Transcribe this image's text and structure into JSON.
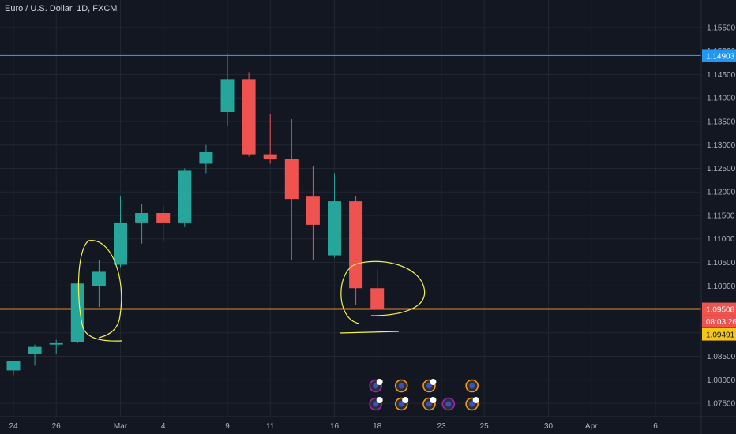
{
  "header": {
    "title": "Euro / U.S. Dollar, 1D, FXCM"
  },
  "colors": {
    "background": "#131722",
    "up": "#26a69a",
    "down": "#ef5350",
    "resistance_line": "#2196f3",
    "support_line": "#e08a2c",
    "annotation": "#f2f24a",
    "axis_text": "#b2b5be",
    "price_tag_bg": "#ef5350",
    "timer_tag_bg": "#ef5350",
    "low_tag_bg": "#f5c518"
  },
  "chart_data": {
    "type": "candlestick",
    "title": "Euro / U.S. Dollar, 1D, FXCM",
    "ylim": [
      1.0735,
      1.1575
    ],
    "y_ticks": [
      "1.15500",
      "1.15000",
      "1.14500",
      "1.14000",
      "1.13500",
      "1.13000",
      "1.12500",
      "1.12000",
      "1.11500",
      "1.11000",
      "1.10500",
      "1.10000",
      "1.09500",
      "1.09000",
      "1.08500",
      "1.08000",
      "1.07500"
    ],
    "x_ticks": [
      {
        "label": "24",
        "index": 0
      },
      {
        "label": "26",
        "index": 2
      },
      {
        "label": "Mar",
        "index": 5
      },
      {
        "label": "4",
        "index": 7
      },
      {
        "label": "9",
        "index": 10
      },
      {
        "label": "11",
        "index": 12
      },
      {
        "label": "16",
        "index": 15
      },
      {
        "label": "18",
        "index": 17
      },
      {
        "label": "23",
        "index": 20
      },
      {
        "label": "25",
        "index": 22
      },
      {
        "label": "30",
        "index": 25
      },
      {
        "label": "Apr",
        "index": 27
      },
      {
        "label": "6",
        "index": 30
      }
    ],
    "candles": [
      {
        "o": 1.082,
        "h": 1.084,
        "l": 1.081,
        "c": 1.084
      },
      {
        "o": 1.0855,
        "h": 1.0875,
        "l": 1.083,
        "c": 1.087
      },
      {
        "o": 1.0875,
        "h": 1.0885,
        "l": 1.0855,
        "c": 1.0878
      },
      {
        "o": 1.088,
        "h": 1.1005,
        "l": 1.0878,
        "c": 1.1005
      },
      {
        "o": 1.1,
        "h": 1.1055,
        "l": 1.0955,
        "c": 1.103
      },
      {
        "o": 1.1045,
        "h": 1.119,
        "l": 1.104,
        "c": 1.1135
      },
      {
        "o": 1.1135,
        "h": 1.1175,
        "l": 1.109,
        "c": 1.1155
      },
      {
        "o": 1.1155,
        "h": 1.117,
        "l": 1.1095,
        "c": 1.1135
      },
      {
        "o": 1.1135,
        "h": 1.125,
        "l": 1.1125,
        "c": 1.1245
      },
      {
        "o": 1.126,
        "h": 1.13,
        "l": 1.124,
        "c": 1.1285
      },
      {
        "o": 1.137,
        "h": 1.1495,
        "l": 1.134,
        "c": 1.144
      },
      {
        "o": 1.144,
        "h": 1.1455,
        "l": 1.1275,
        "c": 1.128
      },
      {
        "o": 1.128,
        "h": 1.1365,
        "l": 1.126,
        "c": 1.127
      },
      {
        "o": 1.127,
        "h": 1.1355,
        "l": 1.1055,
        "c": 1.1185
      },
      {
        "o": 1.119,
        "h": 1.1255,
        "l": 1.1055,
        "c": 1.113
      },
      {
        "o": 1.1065,
        "h": 1.124,
        "l": 1.106,
        "c": 1.118
      },
      {
        "o": 1.118,
        "h": 1.119,
        "l": 1.096,
        "c": 1.0995
      },
      {
        "o": 1.0995,
        "h": 1.1035,
        "l": 1.095,
        "c": 1.0951
      }
    ],
    "horizontal_lines": [
      {
        "name": "resistance",
        "value": 1.14903,
        "label": "1.14903"
      },
      {
        "name": "support",
        "value": 1.09508,
        "label": "1.09508"
      }
    ],
    "price_tags": {
      "last": "1.09508",
      "timer": "08:03:26",
      "low": "1.09491"
    },
    "grid": true
  }
}
